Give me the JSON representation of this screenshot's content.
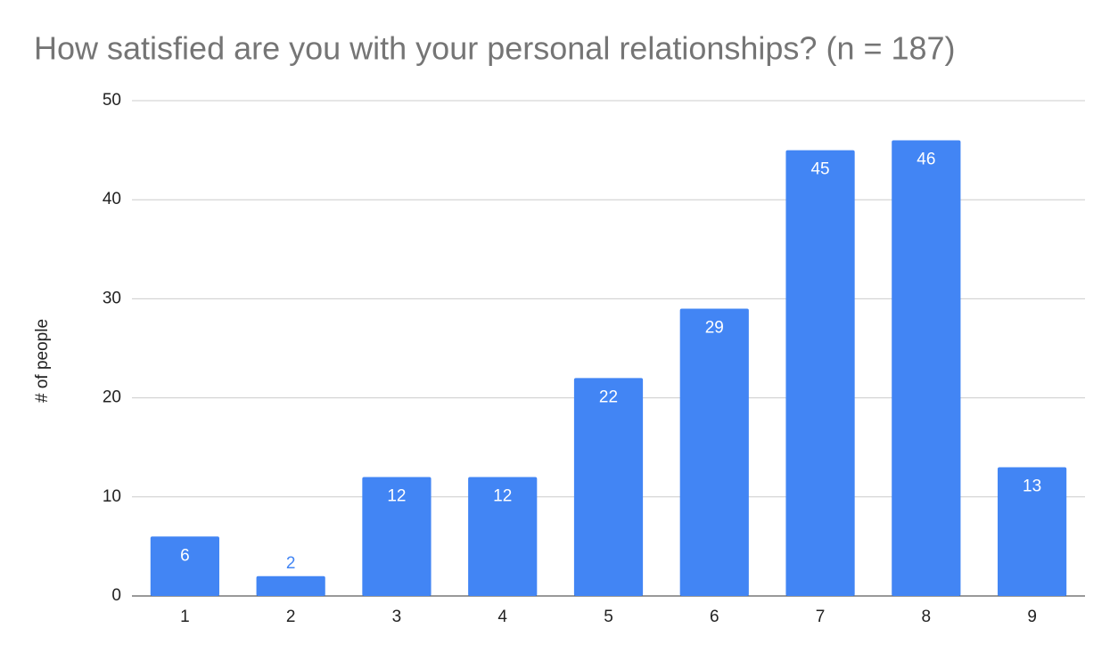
{
  "chart_data": {
    "type": "bar",
    "title": "How satisfied are you with your personal relationships? (n = 187)",
    "y_label": "# of people",
    "categories": [
      "1",
      "2",
      "3",
      "4",
      "5",
      "6",
      "7",
      "8",
      "9"
    ],
    "values": [
      6,
      2,
      12,
      12,
      22,
      29,
      45,
      46,
      13
    ],
    "color": "#4285f4",
    "ylim": [
      0,
      50
    ],
    "yticks": [
      0,
      10,
      20,
      30,
      40,
      50
    ],
    "grid": true
  }
}
